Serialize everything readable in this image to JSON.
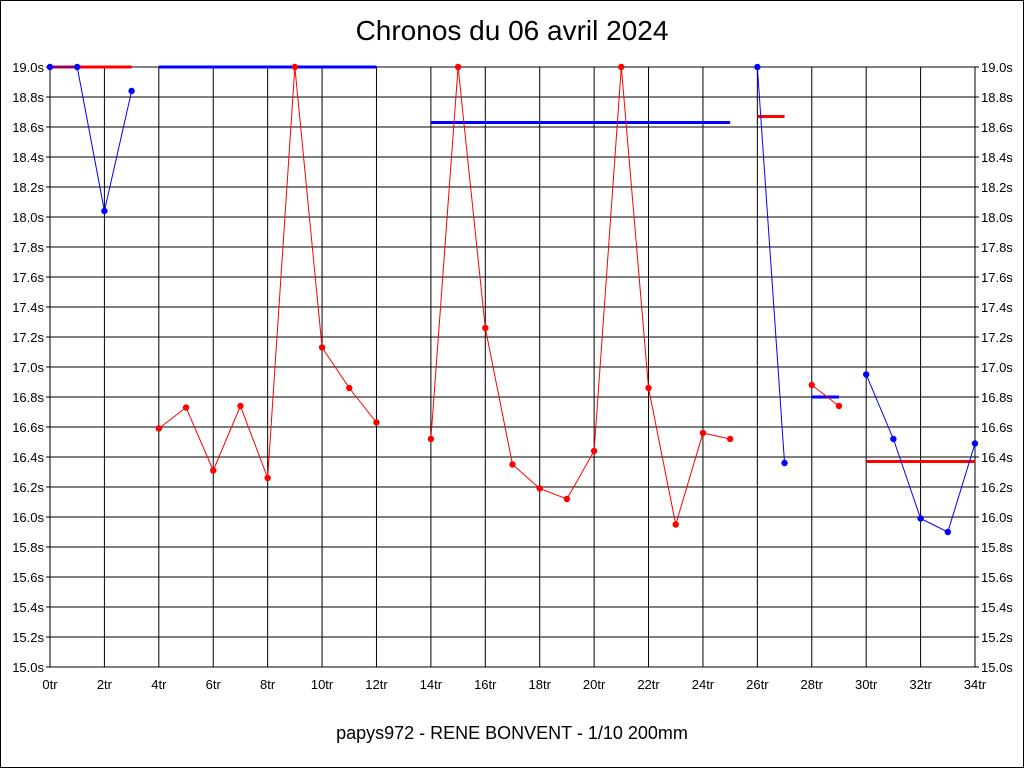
{
  "chart_data": {
    "type": "line",
    "title": "Chronos du 06 avril 2024",
    "subtitle": "papys972 - RENE BONVENT - 1/10 200mm",
    "x_unit": "tr",
    "y_unit": "s",
    "xlim": [
      0,
      34
    ],
    "ylim": [
      15.0,
      19.0
    ],
    "x_tick_step": 2,
    "y_tick_step": 0.2,
    "grid": true,
    "y_ticks_both_sides": true,
    "series": [
      {
        "color": "#0000ff",
        "points": [
          [
            0,
            19.0
          ],
          [
            1,
            19.0
          ],
          [
            2,
            18.04
          ],
          [
            3,
            18.84
          ]
        ]
      },
      {
        "color": "#ff0000",
        "points": [
          [
            4,
            16.59
          ],
          [
            5,
            16.73
          ],
          [
            6,
            16.31
          ],
          [
            7,
            16.74
          ],
          [
            8,
            16.26
          ],
          [
            9,
            19.0
          ],
          [
            10,
            17.13
          ],
          [
            11,
            16.86
          ],
          [
            12,
            16.63
          ]
        ]
      },
      {
        "color": "#ff0000",
        "points": [
          [
            14,
            16.52
          ],
          [
            15,
            19.0
          ],
          [
            16,
            17.26
          ],
          [
            17,
            16.35
          ],
          [
            18,
            16.19
          ],
          [
            19,
            16.12
          ],
          [
            20,
            16.44
          ],
          [
            21,
            19.0
          ],
          [
            22,
            16.86
          ],
          [
            23,
            15.95
          ],
          [
            24,
            16.56
          ],
          [
            25,
            16.52
          ]
        ]
      },
      {
        "color": "#0000ff",
        "points": [
          [
            26,
            19.0
          ],
          [
            27,
            16.36
          ]
        ]
      },
      {
        "color": "#ff0000",
        "points": [
          [
            28,
            16.88
          ],
          [
            29,
            16.74
          ]
        ]
      },
      {
        "color": "#0000ff",
        "points": [
          [
            30,
            16.95
          ],
          [
            31,
            16.52
          ],
          [
            32,
            15.99
          ],
          [
            33,
            15.9
          ],
          [
            34,
            16.49
          ]
        ]
      }
    ],
    "averages": [
      {
        "color": "#ff0000",
        "x_start": 0,
        "x_end": 3,
        "value": 19.0
      },
      {
        "color": "#0000ff",
        "x_start": 4,
        "x_end": 12,
        "value": 19.0
      },
      {
        "color": "#0000ff",
        "x_start": 14,
        "x_end": 25,
        "value": 18.63
      },
      {
        "color": "#ff0000",
        "x_start": 26,
        "x_end": 27,
        "value": 18.67
      },
      {
        "color": "#0000ff",
        "x_start": 28,
        "x_end": 29,
        "value": 16.8
      },
      {
        "color": "#ff0000",
        "x_start": 30,
        "x_end": 34,
        "value": 16.37
      }
    ]
  }
}
